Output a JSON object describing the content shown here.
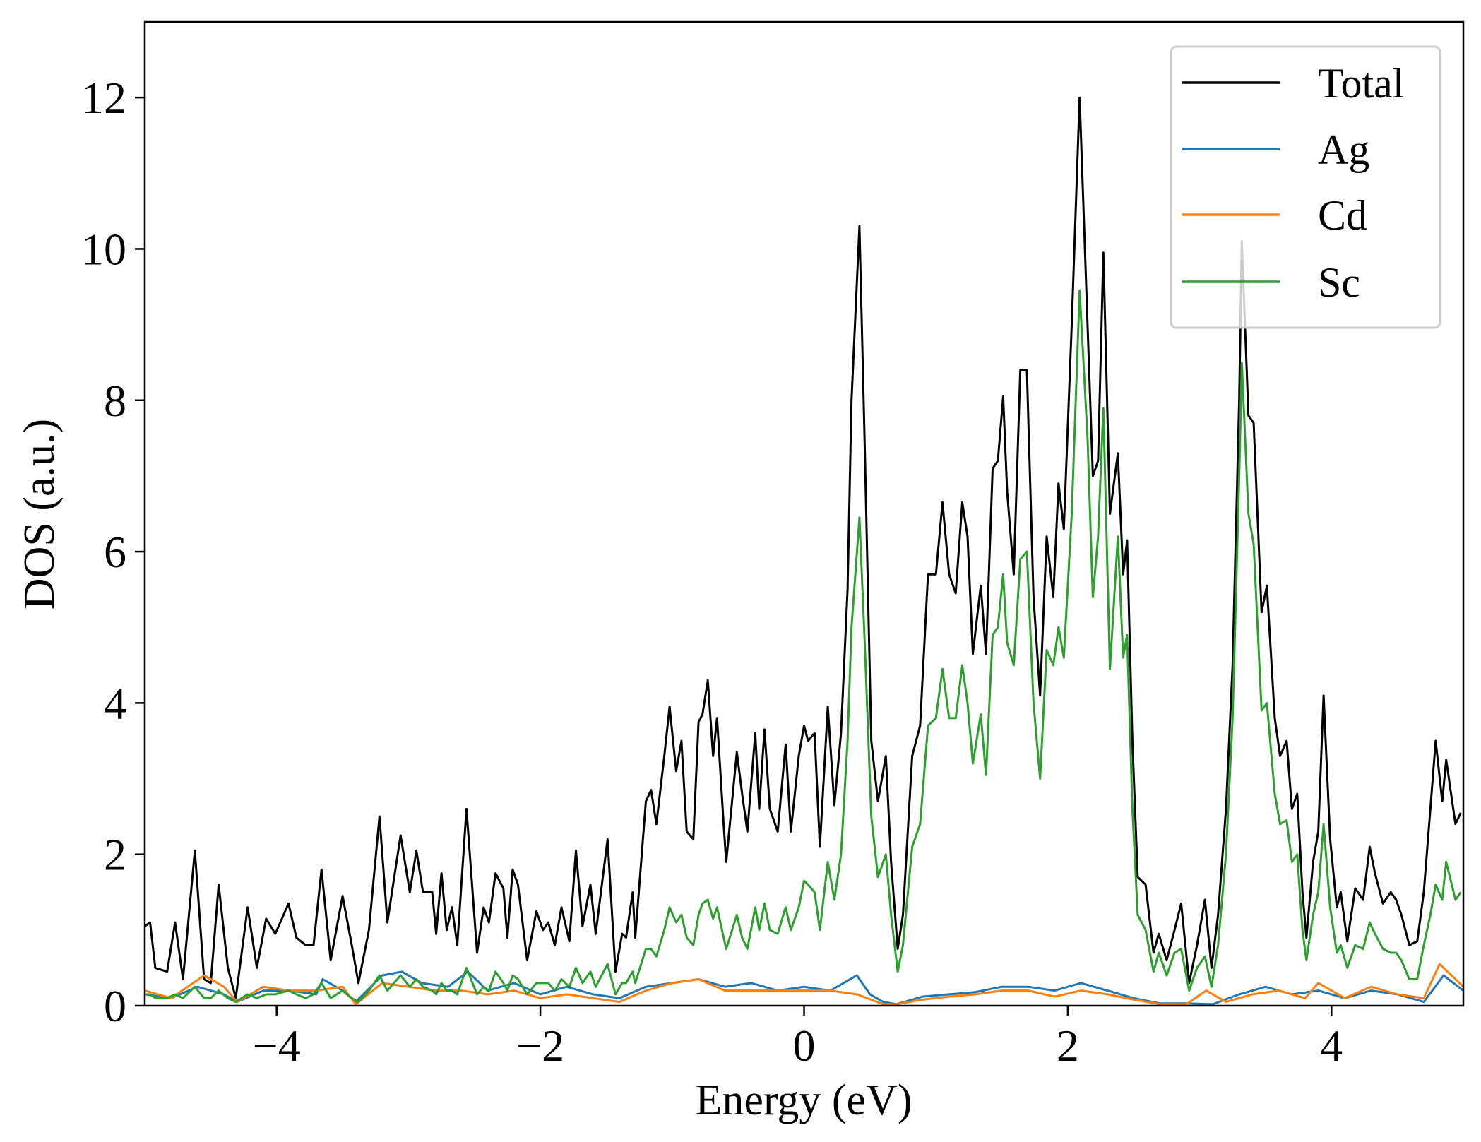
{
  "chart_data": {
    "type": "line",
    "title": "",
    "xlabel": "Energy (eV)",
    "ylabel": "DOS (a.u.)",
    "xlim": [
      -5,
      5
    ],
    "ylim": [
      0,
      13
    ],
    "xticks": [
      -4,
      -2,
      0,
      2,
      4
    ],
    "xtick_labels": [
      "−4",
      "−2",
      "0",
      "2",
      "4"
    ],
    "yticks": [
      0,
      2,
      4,
      6,
      8,
      10,
      12
    ],
    "ytick_labels": [
      "0",
      "2",
      "4",
      "6",
      "8",
      "10",
      "12"
    ],
    "grid": false,
    "legend_position": "top-right",
    "x": [
      -5.0,
      -4.96,
      -4.92,
      -4.83,
      -4.77,
      -4.71,
      -4.62,
      -4.55,
      -4.5,
      -4.44,
      -4.37,
      -4.31,
      -4.22,
      -4.15,
      -4.08,
      -4.01,
      -3.91,
      -3.85,
      -3.78,
      -3.72,
      -3.66,
      -3.59,
      -3.5,
      -3.43,
      -3.38,
      -3.3,
      -3.22,
      -3.16,
      -3.06,
      -2.99,
      -2.94,
      -2.89,
      -2.82,
      -2.79,
      -2.75,
      -2.71,
      -2.67,
      -2.63,
      -2.56,
      -2.48,
      -2.43,
      -2.39,
      -2.34,
      -2.28,
      -2.25,
      -2.21,
      -2.17,
      -2.1,
      -2.03,
      -1.98,
      -1.94,
      -1.89,
      -1.84,
      -1.78,
      -1.73,
      -1.68,
      -1.62,
      -1.58,
      -1.49,
      -1.43,
      -1.38,
      -1.35,
      -1.3,
      -1.28,
      -1.2,
      -1.16,
      -1.12,
      -1.06,
      -1.02,
      -0.97,
      -0.93,
      -0.89,
      -0.84,
      -0.8,
      -0.77,
      -0.73,
      -0.69,
      -0.66,
      -0.61,
      -0.59,
      -0.51,
      -0.47,
      -0.43,
      -0.37,
      -0.34,
      -0.3,
      -0.26,
      -0.2,
      -0.14,
      -0.1,
      -0.04,
      0.0,
      0.03,
      0.08,
      0.12,
      0.18,
      0.23,
      0.28,
      0.33,
      0.36,
      0.42,
      0.46,
      0.51,
      0.56,
      0.62,
      0.66,
      0.71,
      0.75,
      0.82,
      0.88,
      0.94,
      1.0,
      1.05,
      1.1,
      1.15,
      1.2,
      1.24,
      1.28,
      1.34,
      1.38,
      1.43,
      1.47,
      1.51,
      1.54,
      1.59,
      1.64,
      1.69,
      1.74,
      1.79,
      1.84,
      1.89,
      1.93,
      1.97,
      2.03,
      2.09,
      2.15,
      2.19,
      2.23,
      2.27,
      2.32,
      2.38,
      2.42,
      2.45,
      2.49,
      2.53,
      2.59,
      2.65,
      2.69,
      2.75,
      2.81,
      2.86,
      2.92,
      2.98,
      3.04,
      3.09,
      3.14,
      3.2,
      3.25,
      3.3,
      3.32,
      3.37,
      3.41,
      3.47,
      3.51,
      3.57,
      3.61,
      3.66,
      3.7,
      3.74,
      3.78,
      3.81,
      3.86,
      3.9,
      3.94,
      3.99,
      4.04,
      4.07,
      4.12,
      4.18,
      4.24,
      4.29,
      4.33,
      4.39,
      4.45,
      4.49,
      4.53,
      4.59,
      4.65,
      4.7,
      4.75,
      4.79,
      4.84,
      4.87,
      4.94,
      4.98
    ],
    "series": [
      {
        "name": "Total",
        "color": "#000000",
        "values": [
          1.05,
          1.1,
          0.5,
          0.45,
          1.1,
          0.35,
          2.05,
          0.35,
          0.3,
          1.6,
          0.5,
          0.1,
          1.3,
          0.5,
          1.15,
          0.95,
          1.35,
          0.9,
          0.8,
          0.8,
          1.8,
          0.6,
          1.45,
          0.8,
          0.3,
          1.0,
          2.5,
          1.1,
          2.25,
          1.5,
          2.05,
          1.5,
          1.5,
          0.95,
          1.75,
          1.0,
          1.3,
          0.8,
          2.6,
          0.7,
          1.3,
          1.1,
          1.75,
          1.55,
          0.9,
          1.8,
          1.6,
          0.6,
          1.25,
          1.0,
          1.1,
          0.8,
          1.3,
          0.85,
          2.05,
          1.05,
          1.6,
          0.95,
          2.2,
          0.45,
          0.95,
          0.9,
          1.5,
          0.9,
          2.7,
          2.85,
          2.4,
          3.3,
          3.95,
          3.1,
          3.5,
          2.3,
          2.2,
          3.75,
          3.85,
          4.3,
          3.3,
          3.8,
          2.4,
          1.9,
          3.35,
          2.8,
          2.3,
          3.6,
          2.6,
          3.65,
          2.6,
          2.3,
          3.45,
          2.3,
          3.3,
          3.7,
          3.5,
          3.6,
          2.1,
          3.95,
          2.65,
          3.6,
          5.5,
          8.0,
          10.3,
          7.4,
          3.5,
          2.7,
          3.3,
          1.9,
          0.75,
          1.2,
          3.3,
          3.7,
          5.7,
          5.7,
          6.65,
          5.7,
          5.45,
          6.65,
          6.2,
          4.65,
          5.55,
          4.65,
          7.1,
          7.2,
          8.05,
          6.8,
          5.7,
          8.4,
          8.4,
          5.4,
          4.1,
          6.2,
          5.4,
          6.9,
          6.3,
          9.0,
          12.0,
          9.0,
          7.0,
          7.2,
          9.95,
          6.5,
          7.3,
          5.7,
          6.15,
          3.5,
          1.7,
          1.6,
          0.7,
          0.95,
          0.6,
          1.0,
          1.35,
          0.3,
          0.8,
          1.4,
          0.5,
          1.2,
          2.6,
          4.5,
          8.0,
          10.1,
          7.8,
          7.7,
          5.2,
          5.55,
          3.8,
          3.3,
          3.5,
          2.6,
          2.8,
          1.5,
          0.9,
          1.9,
          2.3,
          4.1,
          2.2,
          1.3,
          1.5,
          0.85,
          1.55,
          1.4,
          2.1,
          1.75,
          1.35,
          1.5,
          1.4,
          1.2,
          0.8,
          0.85,
          1.5,
          2.6,
          3.5,
          2.7,
          3.25,
          2.4,
          2.55
        ]
      },
      {
        "name": "Sc",
        "color": "#2ca02c",
        "values": [
          0.15,
          0.15,
          0.1,
          0.1,
          0.15,
          0.1,
          0.25,
          0.1,
          0.1,
          0.2,
          0.1,
          0.05,
          0.15,
          0.1,
          0.15,
          0.15,
          0.2,
          0.15,
          0.1,
          0.15,
          0.3,
          0.1,
          0.2,
          0.1,
          0.05,
          0.2,
          0.4,
          0.2,
          0.4,
          0.25,
          0.35,
          0.25,
          0.2,
          0.15,
          0.3,
          0.2,
          0.2,
          0.15,
          0.5,
          0.15,
          0.25,
          0.2,
          0.45,
          0.3,
          0.2,
          0.4,
          0.35,
          0.15,
          0.3,
          0.3,
          0.3,
          0.2,
          0.35,
          0.25,
          0.5,
          0.3,
          0.45,
          0.25,
          0.55,
          0.15,
          0.3,
          0.3,
          0.45,
          0.3,
          0.75,
          0.75,
          0.65,
          1.0,
          1.3,
          1.1,
          1.2,
          0.9,
          0.8,
          1.2,
          1.35,
          1.4,
          1.15,
          1.3,
          0.9,
          0.75,
          1.2,
          0.9,
          0.75,
          1.3,
          1.0,
          1.35,
          1.0,
          0.95,
          1.3,
          1.0,
          1.3,
          1.65,
          1.6,
          1.5,
          1.0,
          1.9,
          1.4,
          2.0,
          3.5,
          5.0,
          6.45,
          4.8,
          2.5,
          1.7,
          2.0,
          1.2,
          0.45,
          0.8,
          2.1,
          2.4,
          3.7,
          3.8,
          4.45,
          3.8,
          3.8,
          4.5,
          4.0,
          3.2,
          3.85,
          3.05,
          4.9,
          5.0,
          5.7,
          4.8,
          4.5,
          5.9,
          6.0,
          4.0,
          3.0,
          4.7,
          4.5,
          5.0,
          4.6,
          6.5,
          9.45,
          7.5,
          5.4,
          6.2,
          7.9,
          4.45,
          6.2,
          4.6,
          4.9,
          2.6,
          1.2,
          1.0,
          0.45,
          0.7,
          0.4,
          0.7,
          0.75,
          0.2,
          0.5,
          0.65,
          0.25,
          0.8,
          2.0,
          3.8,
          7.0,
          8.5,
          6.5,
          6.1,
          3.9,
          4.0,
          2.8,
          2.4,
          2.45,
          1.9,
          2.0,
          1.0,
          0.6,
          1.2,
          1.5,
          2.4,
          1.3,
          0.7,
          0.8,
          0.5,
          0.8,
          0.75,
          1.1,
          0.95,
          0.75,
          0.7,
          0.7,
          0.6,
          0.35,
          0.35,
          0.8,
          1.2,
          1.6,
          1.4,
          1.9,
          1.4,
          1.5
        ]
      },
      {
        "name": "Ag",
        "color": "#1f77b4",
        "x": [
          -5,
          -4.8,
          -4.6,
          -4.4,
          -4.3,
          -4.1,
          -3.9,
          -3.7,
          -3.65,
          -3.5,
          -3.4,
          -3.2,
          -3.05,
          -2.9,
          -2.7,
          -2.55,
          -2.4,
          -2.2,
          -2.0,
          -1.8,
          -1.6,
          -1.4,
          -1.2,
          -1.0,
          -0.8,
          -0.6,
          -0.4,
          -0.2,
          0,
          0.2,
          0.4,
          0.5,
          0.6,
          0.7,
          0.9,
          1.1,
          1.3,
          1.5,
          1.7,
          1.9,
          2.1,
          2.3,
          2.5,
          2.7,
          2.9,
          3.1,
          3.3,
          3.5,
          3.7,
          3.9,
          4.1,
          4.3,
          4.5,
          4.7,
          4.85,
          5
        ],
        "values": [
          0.15,
          0.1,
          0.25,
          0.15,
          0.05,
          0.2,
          0.2,
          0.15,
          0.35,
          0.2,
          0.05,
          0.4,
          0.45,
          0.3,
          0.25,
          0.45,
          0.2,
          0.3,
          0.15,
          0.25,
          0.15,
          0.1,
          0.25,
          0.3,
          0.35,
          0.25,
          0.3,
          0.2,
          0.25,
          0.2,
          0.4,
          0.15,
          0.05,
          0.02,
          0.12,
          0.15,
          0.18,
          0.25,
          0.25,
          0.2,
          0.3,
          0.2,
          0.1,
          0.03,
          0.03,
          0.02,
          0.15,
          0.25,
          0.15,
          0.2,
          0.1,
          0.2,
          0.15,
          0.05,
          0.4,
          0.2
        ]
      },
      {
        "name": "Cd",
        "color": "#ff7f0e",
        "x": [
          -5,
          -4.8,
          -4.55,
          -4.4,
          -4.3,
          -4.1,
          -3.9,
          -3.7,
          -3.5,
          -3.4,
          -3.2,
          -3.0,
          -2.8,
          -2.6,
          -2.4,
          -2.2,
          -2.0,
          -1.8,
          -1.6,
          -1.4,
          -1.2,
          -1.0,
          -0.8,
          -0.6,
          -0.4,
          -0.2,
          0,
          0.2,
          0.4,
          0.6,
          0.7,
          0.9,
          1.1,
          1.3,
          1.5,
          1.7,
          1.9,
          2.1,
          2.3,
          2.5,
          2.7,
          2.9,
          3.05,
          3.2,
          3.4,
          3.6,
          3.8,
          3.9,
          4.1,
          4.3,
          4.5,
          4.7,
          4.82,
          5
        ],
        "values": [
          0.2,
          0.1,
          0.4,
          0.25,
          0.05,
          0.25,
          0.2,
          0.2,
          0.25,
          0.02,
          0.3,
          0.25,
          0.2,
          0.2,
          0.15,
          0.2,
          0.1,
          0.15,
          0.1,
          0.05,
          0.2,
          0.3,
          0.35,
          0.2,
          0.2,
          0.2,
          0.2,
          0.2,
          0.15,
          0.02,
          0.02,
          0.08,
          0.12,
          0.15,
          0.2,
          0.2,
          0.12,
          0.2,
          0.15,
          0.08,
          0.02,
          0.02,
          0.2,
          0.05,
          0.15,
          0.2,
          0.1,
          0.3,
          0.1,
          0.25,
          0.15,
          0.1,
          0.55,
          0.25
        ]
      }
    ],
    "legend": [
      "Total",
      "Ag",
      "Cd",
      "Sc"
    ]
  }
}
